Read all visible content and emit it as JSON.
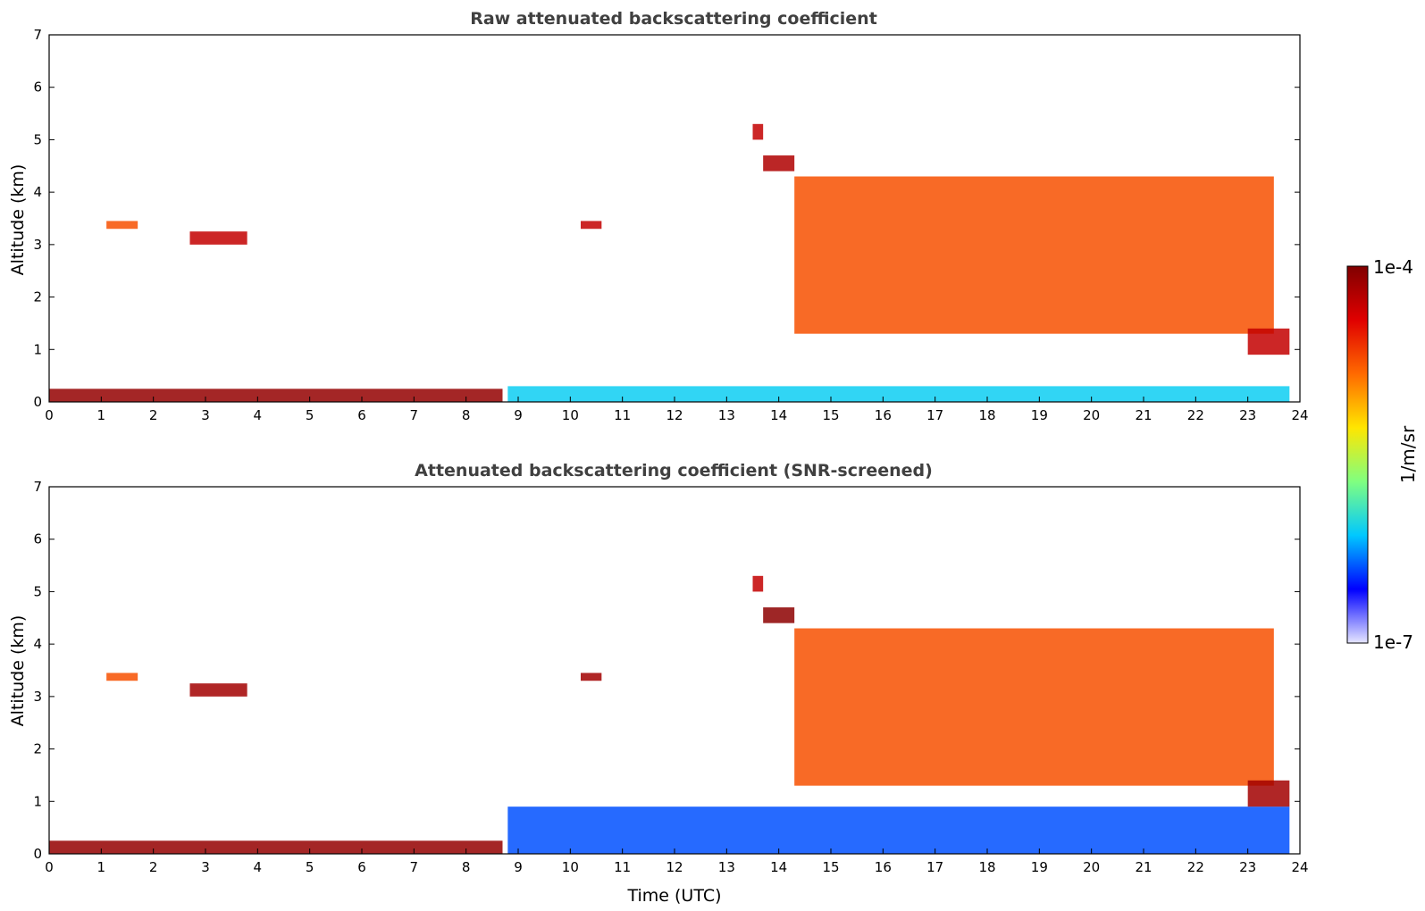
{
  "chart_data": [
    {
      "type": "heatmap",
      "title": "Raw attenuated backscattering coefficient",
      "xlabel": "",
      "ylabel": "Altitude (km)",
      "xlim": [
        0,
        24
      ],
      "ylim": [
        0,
        7
      ],
      "xticks": [
        "0",
        "1",
        "2",
        "3",
        "4",
        "5",
        "6",
        "7",
        "8",
        "9",
        "10",
        "11",
        "12",
        "13",
        "14",
        "15",
        "16",
        "17",
        "18",
        "19",
        "20",
        "21",
        "22",
        "23",
        "24"
      ],
      "yticks": [
        "0",
        "1",
        "2",
        "3",
        "4",
        "5",
        "6",
        "7"
      ],
      "features": [
        {
          "name": "surface layer",
          "t": [
            0,
            8.7
          ],
          "z": [
            0.0,
            0.25
          ],
          "level": 0.97
        },
        {
          "name": "near-surface noise",
          "t": [
            8.8,
            23.8
          ],
          "z": [
            0.0,
            0.3
          ],
          "level": 0.3
        },
        {
          "name": "mid-level cloud",
          "t": [
            1.1,
            1.7
          ],
          "z": [
            3.3,
            3.45
          ],
          "level": 0.75
        },
        {
          "name": "mid-level cloud",
          "t": [
            2.7,
            3.8
          ],
          "z": [
            3.0,
            3.25
          ],
          "level": 0.9
        },
        {
          "name": "mid-level cloud",
          "t": [
            10.2,
            10.6
          ],
          "z": [
            3.3,
            3.45
          ],
          "level": 0.9
        },
        {
          "name": "high cloud",
          "t": [
            13.5,
            13.7
          ],
          "z": [
            5.0,
            5.3
          ],
          "level": 0.9
        },
        {
          "name": "high cloud",
          "t": [
            13.7,
            14.3
          ],
          "z": [
            4.4,
            4.7
          ],
          "level": 0.93
        },
        {
          "name": "cloud system",
          "t": [
            14.3,
            23.5
          ],
          "z": [
            1.3,
            4.3
          ],
          "level": 0.75
        },
        {
          "name": "boundary layer cloud",
          "t": [
            23.0,
            23.8
          ],
          "z": [
            0.9,
            1.4
          ],
          "level": 0.9
        }
      ]
    },
    {
      "type": "heatmap",
      "title": "Attenuated backscattering coefficient (SNR-screened)",
      "xlabel": "Time (UTC)",
      "ylabel": "Altitude (km)",
      "xlim": [
        0,
        24
      ],
      "ylim": [
        0,
        7
      ],
      "xticks": [
        "0",
        "1",
        "2",
        "3",
        "4",
        "5",
        "6",
        "7",
        "8",
        "9",
        "10",
        "11",
        "12",
        "13",
        "14",
        "15",
        "16",
        "17",
        "18",
        "19",
        "20",
        "21",
        "22",
        "23",
        "24"
      ],
      "yticks": [
        "0",
        "1",
        "2",
        "3",
        "4",
        "5",
        "6",
        "7"
      ],
      "features": [
        {
          "name": "surface layer",
          "t": [
            0,
            8.7
          ],
          "z": [
            0.0,
            0.25
          ],
          "level": 0.97
        },
        {
          "name": "aerosol layer",
          "t": [
            8.8,
            23.8
          ],
          "z": [
            0.0,
            0.9
          ],
          "level": 0.2
        },
        {
          "name": "mid-level cloud",
          "t": [
            1.1,
            1.7
          ],
          "z": [
            3.3,
            3.45
          ],
          "level": 0.75
        },
        {
          "name": "mid-level cloud",
          "t": [
            2.7,
            3.8
          ],
          "z": [
            3.0,
            3.25
          ],
          "level": 0.95
        },
        {
          "name": "mid-level cloud",
          "t": [
            10.2,
            10.6
          ],
          "z": [
            3.3,
            3.45
          ],
          "level": 0.95
        },
        {
          "name": "high cloud",
          "t": [
            13.5,
            13.7
          ],
          "z": [
            5.0,
            5.3
          ],
          "level": 0.9
        },
        {
          "name": "high cloud",
          "t": [
            13.7,
            14.3
          ],
          "z": [
            4.4,
            4.7
          ],
          "level": 0.98
        },
        {
          "name": "cloud system",
          "t": [
            14.3,
            23.5
          ],
          "z": [
            1.3,
            4.3
          ],
          "level": 0.75
        },
        {
          "name": "boundary layer cloud",
          "t": [
            23.0,
            23.8
          ],
          "z": [
            0.9,
            1.4
          ],
          "level": 0.95
        }
      ]
    }
  ],
  "colorbar": {
    "max_label": "1e-4",
    "min_label": "1e-7",
    "unit_label": "1/m/sr",
    "colors": [
      "#e6e6ff",
      "#0000ff",
      "#00c8ff",
      "#80ff80",
      "#ffe600",
      "#ff6a00",
      "#e00000",
      "#800000"
    ]
  }
}
